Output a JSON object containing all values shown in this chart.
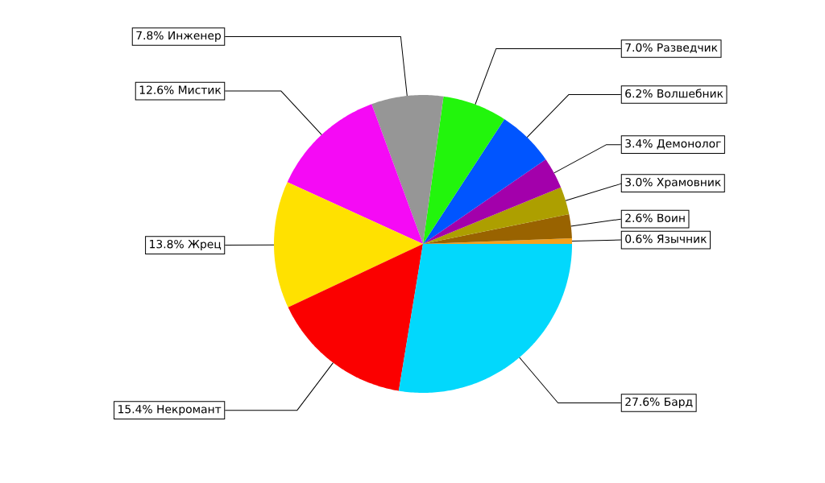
{
  "chart_data": {
    "type": "pie",
    "categories": [
      "Язычник",
      "Воин",
      "Храмовник",
      "Демонолог",
      "Волшебник",
      "Разведчик",
      "Инженер",
      "Мистик",
      "Жрец",
      "Некромант",
      "Бард"
    ],
    "values": [
      0.6,
      2.6,
      3.0,
      3.4,
      6.2,
      7.0,
      7.8,
      12.6,
      13.8,
      15.4,
      27.6
    ],
    "colors": [
      "#f7a11a",
      "#996300",
      "#ad9f00",
      "#a300ab",
      "#0055ff",
      "#22f50c",
      "#969696",
      "#f50af5",
      "#ffe100",
      "#fb0000",
      "#02d8fc"
    ],
    "value_labels": [
      "0.6%",
      "2.6%",
      "3.0%",
      "3.4%",
      "6.2%",
      "7.0%",
      "7.8%",
      "12.6%",
      "13.8%",
      "15.4%",
      "27.6%"
    ]
  }
}
